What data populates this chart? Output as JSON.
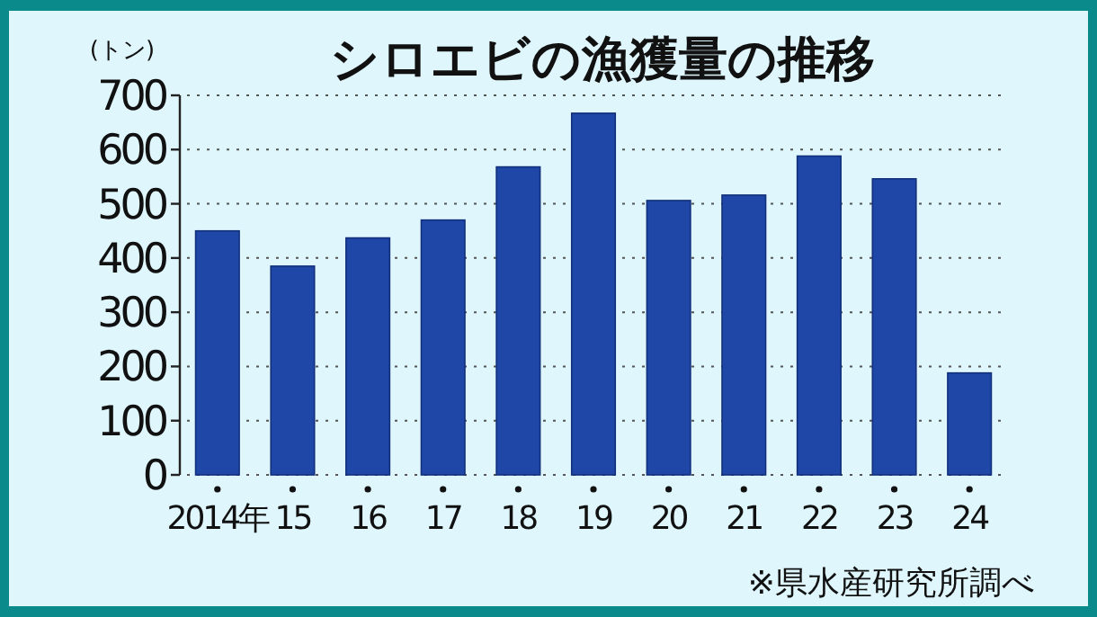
{
  "chart_data": {
    "type": "bar",
    "title": "シロエビの漁獲量の推移",
    "ylabel": "(トン)",
    "categories": [
      "2014年",
      "15",
      "16",
      "17",
      "18",
      "19",
      "20",
      "21",
      "22",
      "23",
      "24"
    ],
    "values": [
      450,
      385,
      437,
      470,
      568,
      667,
      506,
      516,
      588,
      546,
      188
    ],
    "color": "#1f47a8",
    "ylim": [
      0,
      700
    ],
    "yticks": [
      0,
      100,
      200,
      300,
      400,
      500,
      600,
      700
    ],
    "grid": "y",
    "annotations": [
      "※県水産研究所調べ"
    ]
  }
}
